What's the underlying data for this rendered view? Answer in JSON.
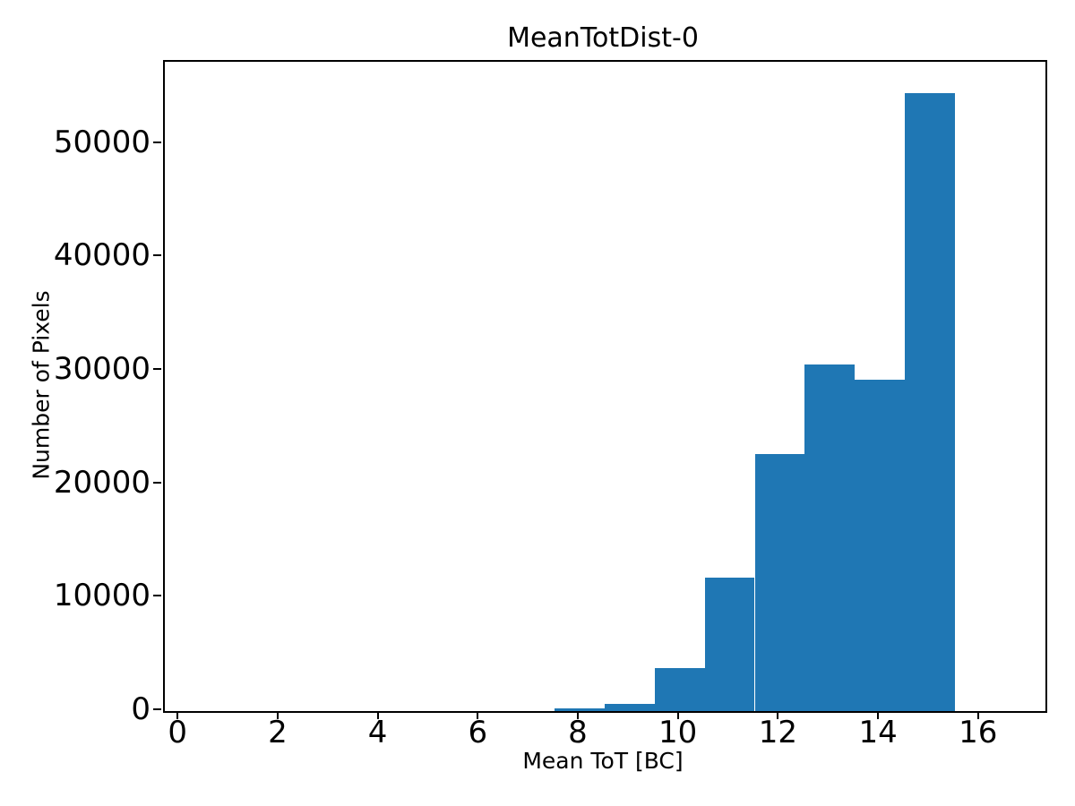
{
  "chart_data": {
    "type": "bar",
    "subtype": "histogram",
    "title": "MeanTotDist-0",
    "xlabel": "Mean ToT [BC]",
    "ylabel": "Number of Pixels",
    "bar_color": "#1f77b4",
    "axis_color": "#000000",
    "background_color": "#ffffff",
    "bin_edges": [
      0.5,
      1.5,
      2.5,
      3.5,
      4.5,
      5.5,
      6.5,
      7.5,
      8.5,
      9.5,
      10.5,
      11.5,
      12.5,
      13.5,
      14.5,
      15.5,
      16.5
    ],
    "counts": [
      0,
      0,
      0,
      0,
      0,
      0,
      0,
      230,
      600,
      3770,
      11800,
      22650,
      30550,
      29250,
      54500,
      0
    ],
    "xticks": [
      0,
      2,
      4,
      6,
      8,
      10,
      12,
      14,
      16
    ],
    "yticks": [
      0,
      10000,
      20000,
      30000,
      40000,
      50000
    ],
    "xlim": [
      -0.29,
      17.31
    ],
    "ylim": [
      0,
      57250
    ],
    "grid": false,
    "legend": null
  }
}
